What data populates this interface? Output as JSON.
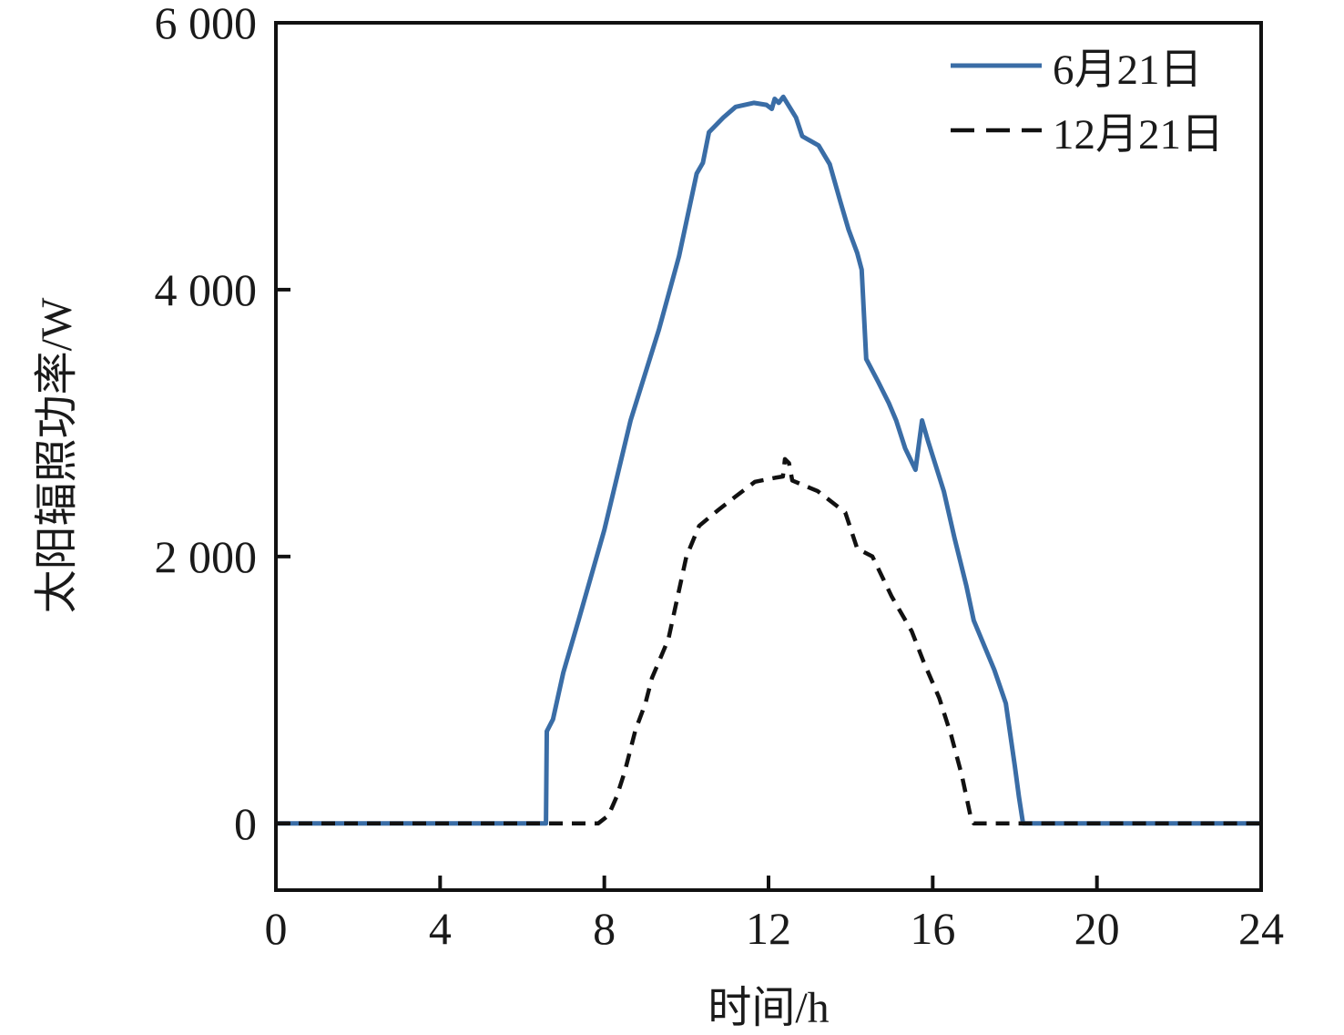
{
  "figure": {
    "background": "#ffffff",
    "axis_color": "#111111",
    "text_color": "#1a1a1a"
  },
  "chart_data": {
    "type": "line",
    "title": "",
    "xlabel": "时间/h",
    "ylabel": "太阳辐照功率/W",
    "xlim": [
      0,
      24
    ],
    "ylim": [
      -500,
      6000
    ],
    "grid": false,
    "frame": "box",
    "tick_direction": "in",
    "legend_position": "top-right",
    "legend_frame": false,
    "x_ticks": {
      "values": [
        0,
        4,
        8,
        12,
        16,
        20,
        24
      ],
      "labels": [
        "0",
        "4",
        "8",
        "12",
        "16",
        "20",
        "24"
      ]
    },
    "y_ticks": {
      "values": [
        0,
        2000,
        4000,
        6000
      ],
      "labels": [
        "0",
        "2 000",
        "4 000",
        "6 000"
      ]
    },
    "series": [
      {
        "name": "6月21日",
        "color": "#3A6DA6",
        "line_style": "solid",
        "line_width": 5,
        "points": [
          [
            0,
            0
          ],
          [
            6.58,
            0
          ],
          [
            6.6,
            690
          ],
          [
            6.75,
            780
          ],
          [
            7.0,
            1130
          ],
          [
            7.38,
            1530
          ],
          [
            8.0,
            2200
          ],
          [
            8.64,
            3020
          ],
          [
            9.33,
            3700
          ],
          [
            9.82,
            4250
          ],
          [
            10.25,
            4870
          ],
          [
            10.4,
            4950
          ],
          [
            10.55,
            5180
          ],
          [
            10.9,
            5290
          ],
          [
            11.2,
            5370
          ],
          [
            11.64,
            5400
          ],
          [
            11.95,
            5385
          ],
          [
            12.08,
            5355
          ],
          [
            12.15,
            5430
          ],
          [
            12.25,
            5400
          ],
          [
            12.36,
            5445
          ],
          [
            12.67,
            5290
          ],
          [
            12.82,
            5150
          ],
          [
            13.22,
            5080
          ],
          [
            13.49,
            4940
          ],
          [
            13.76,
            4650
          ],
          [
            13.95,
            4450
          ],
          [
            14.16,
            4275
          ],
          [
            14.27,
            4150
          ],
          [
            14.38,
            3480
          ],
          [
            14.67,
            3310
          ],
          [
            14.93,
            3150
          ],
          [
            15.11,
            3020
          ],
          [
            15.33,
            2810
          ],
          [
            15.58,
            2650
          ],
          [
            15.74,
            3020
          ],
          [
            15.89,
            2860
          ],
          [
            16.27,
            2490
          ],
          [
            16.53,
            2140
          ],
          [
            16.82,
            1780
          ],
          [
            17.0,
            1520
          ],
          [
            17.5,
            1150
          ],
          [
            17.78,
            900
          ],
          [
            18.0,
            430
          ],
          [
            18.1,
            200
          ],
          [
            18.2,
            0
          ],
          [
            24,
            0
          ]
        ]
      },
      {
        "name": "12月21日",
        "color": "#111111",
        "line_style": "dashed",
        "line_width": 4.5,
        "points": [
          [
            0,
            0
          ],
          [
            7.85,
            0
          ],
          [
            8.1,
            60
          ],
          [
            8.3,
            200
          ],
          [
            8.5,
            390
          ],
          [
            8.76,
            700
          ],
          [
            9.0,
            900
          ],
          [
            9.16,
            1090
          ],
          [
            9.56,
            1380
          ],
          [
            9.78,
            1690
          ],
          [
            10.0,
            2000
          ],
          [
            10.31,
            2230
          ],
          [
            10.78,
            2350
          ],
          [
            11.2,
            2450
          ],
          [
            11.67,
            2560
          ],
          [
            12.16,
            2590
          ],
          [
            12.35,
            2600
          ],
          [
            12.4,
            2730
          ],
          [
            12.5,
            2700
          ],
          [
            12.58,
            2570
          ],
          [
            13.2,
            2490
          ],
          [
            13.87,
            2330
          ],
          [
            14.16,
            2060
          ],
          [
            14.53,
            2000
          ],
          [
            15.0,
            1700
          ],
          [
            15.49,
            1440
          ],
          [
            15.78,
            1210
          ],
          [
            16.16,
            940
          ],
          [
            16.45,
            660
          ],
          [
            16.71,
            360
          ],
          [
            16.93,
            40
          ],
          [
            17.0,
            0
          ],
          [
            24,
            0
          ]
        ]
      }
    ]
  }
}
